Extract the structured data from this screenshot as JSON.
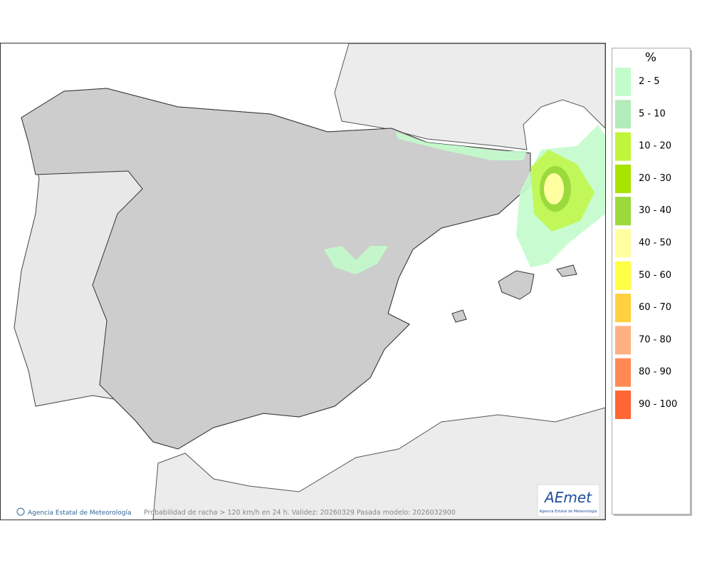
{
  "legend": {
    "title": "%",
    "items": [
      {
        "label": "2 - 5",
        "color": "#c2fccb"
      },
      {
        "label": "5 - 10",
        "color": "#b3ebb9"
      },
      {
        "label": "10 - 20",
        "color": "#bff53a"
      },
      {
        "label": "20 - 30",
        "color": "#a6e400"
      },
      {
        "label": "30 - 40",
        "color": "#9ada3c"
      },
      {
        "label": "40 - 50",
        "color": "#ffffa0"
      },
      {
        "label": "50 - 60",
        "color": "#ffff44"
      },
      {
        "label": "60 - 70",
        "color": "#ffd040"
      },
      {
        "label": "70 - 80",
        "color": "#ffb080"
      },
      {
        "label": "80 - 90",
        "color": "#ff8855"
      },
      {
        "label": "90 - 100",
        "color": "#ff6633"
      }
    ]
  },
  "footer": {
    "credit": "Agencia Estatal de Meteorología",
    "caption": "Probabilidad de racha > 120 km/h en 24 h. Validez: 20260329 Pasada modelo: 2026032900"
  },
  "logo": {
    "name": "AEmet",
    "subtitle": "Agencia Estatal de Meteorología"
  }
}
